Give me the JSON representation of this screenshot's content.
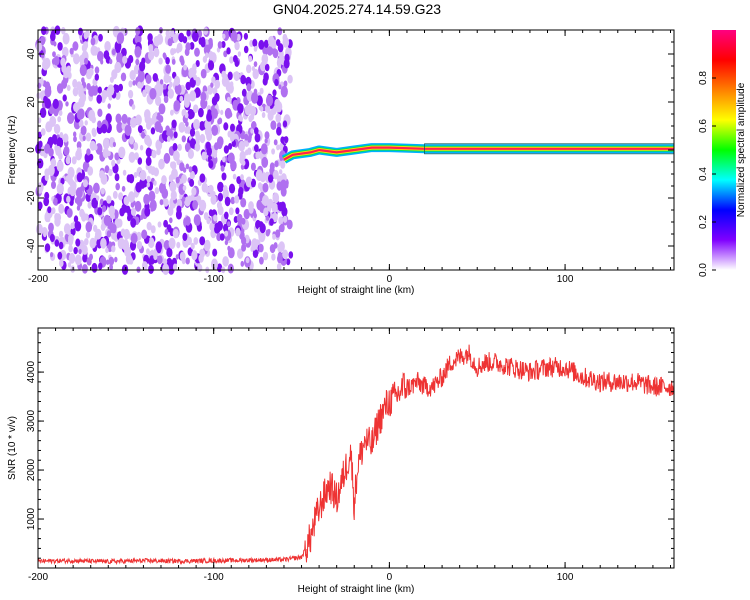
{
  "figure": {
    "title": "GN04.2025.274.14.59.G23"
  },
  "chart_data": [
    {
      "type": "heatmap",
      "xlabel": "Height of straight line (km)",
      "ylabel": "Frequency (Hz)",
      "xlim": [
        -200,
        162
      ],
      "ylim": [
        -50,
        50
      ],
      "xticks": [
        -200,
        -100,
        0,
        100
      ],
      "yticks": [
        -40,
        -20,
        0,
        20,
        40
      ],
      "colorbar": {
        "label": "Normalized spectral amplitude",
        "range": [
          0,
          1
        ],
        "ticks": [
          0.0,
          0.2,
          0.4,
          0.6,
          0.8
        ],
        "tick_labels": [
          "0.0",
          "0.2",
          "0.4",
          "0.6",
          "0.8"
        ],
        "colors": [
          "#ffffff",
          "#8000ff",
          "#0000ff",
          "#00ffff",
          "#00ff00",
          "#ffff00",
          "#ff8000",
          "#ff0000",
          "#ff0080"
        ]
      },
      "regions": [
        {
          "description": "noise",
          "x_range": [
            -200,
            -56
          ],
          "freq_range": [
            -50,
            50
          ],
          "amplitude_range": [
            0.0,
            0.25
          ]
        },
        {
          "description": "tone",
          "x_range": [
            -56,
            162
          ],
          "freq_hz": 0.5,
          "peak_amplitude": 0.95
        }
      ],
      "line_track": [
        {
          "x": -60,
          "freq": -4
        },
        {
          "x": -55,
          "freq": -2
        },
        {
          "x": -45,
          "freq": -1
        },
        {
          "x": -40,
          "freq": 0
        },
        {
          "x": -30,
          "freq": -1
        },
        {
          "x": -20,
          "freq": 0
        },
        {
          "x": -10,
          "freq": 1
        },
        {
          "x": 0,
          "freq": 1
        },
        {
          "x": 20,
          "freq": 0.5
        },
        {
          "x": 162,
          "freq": 0.5
        }
      ],
      "grid": false
    },
    {
      "type": "line",
      "xlabel": "Height of straight line (km)",
      "ylabel": "SNR (10 * v/v)",
      "xlim": [
        -200,
        162
      ],
      "ylim": [
        0,
        4900
      ],
      "xticks": [
        -200,
        -100,
        0,
        100
      ],
      "yticks": [
        1000,
        2000,
        3000,
        4000
      ],
      "series": [
        {
          "color": "#ee3333",
          "x": [
            -200,
            -180,
            -160,
            -140,
            -120,
            -100,
            -80,
            -60,
            -50,
            -45,
            -42,
            -38,
            -34,
            -30,
            -26,
            -22,
            -20,
            -18,
            -14,
            -10,
            -6,
            -2,
            0,
            4,
            8,
            12,
            16,
            20,
            25,
            30,
            35,
            40,
            45,
            50,
            55,
            60,
            70,
            80,
            90,
            100,
            110,
            120,
            130,
            140,
            150,
            162
          ],
          "y": [
            140,
            150,
            130,
            150,
            140,
            150,
            160,
            170,
            220,
            600,
            1000,
            1400,
            1700,
            1400,
            1900,
            2400,
            1300,
            2100,
            2600,
            2500,
            3000,
            3300,
            3400,
            3500,
            3700,
            3700,
            3800,
            3700,
            3700,
            3900,
            4200,
            4300,
            4400,
            4100,
            4200,
            4200,
            4100,
            4000,
            4100,
            4100,
            3900,
            3800,
            3800,
            3800,
            3700,
            3700
          ]
        }
      ],
      "grid": false
    }
  ]
}
